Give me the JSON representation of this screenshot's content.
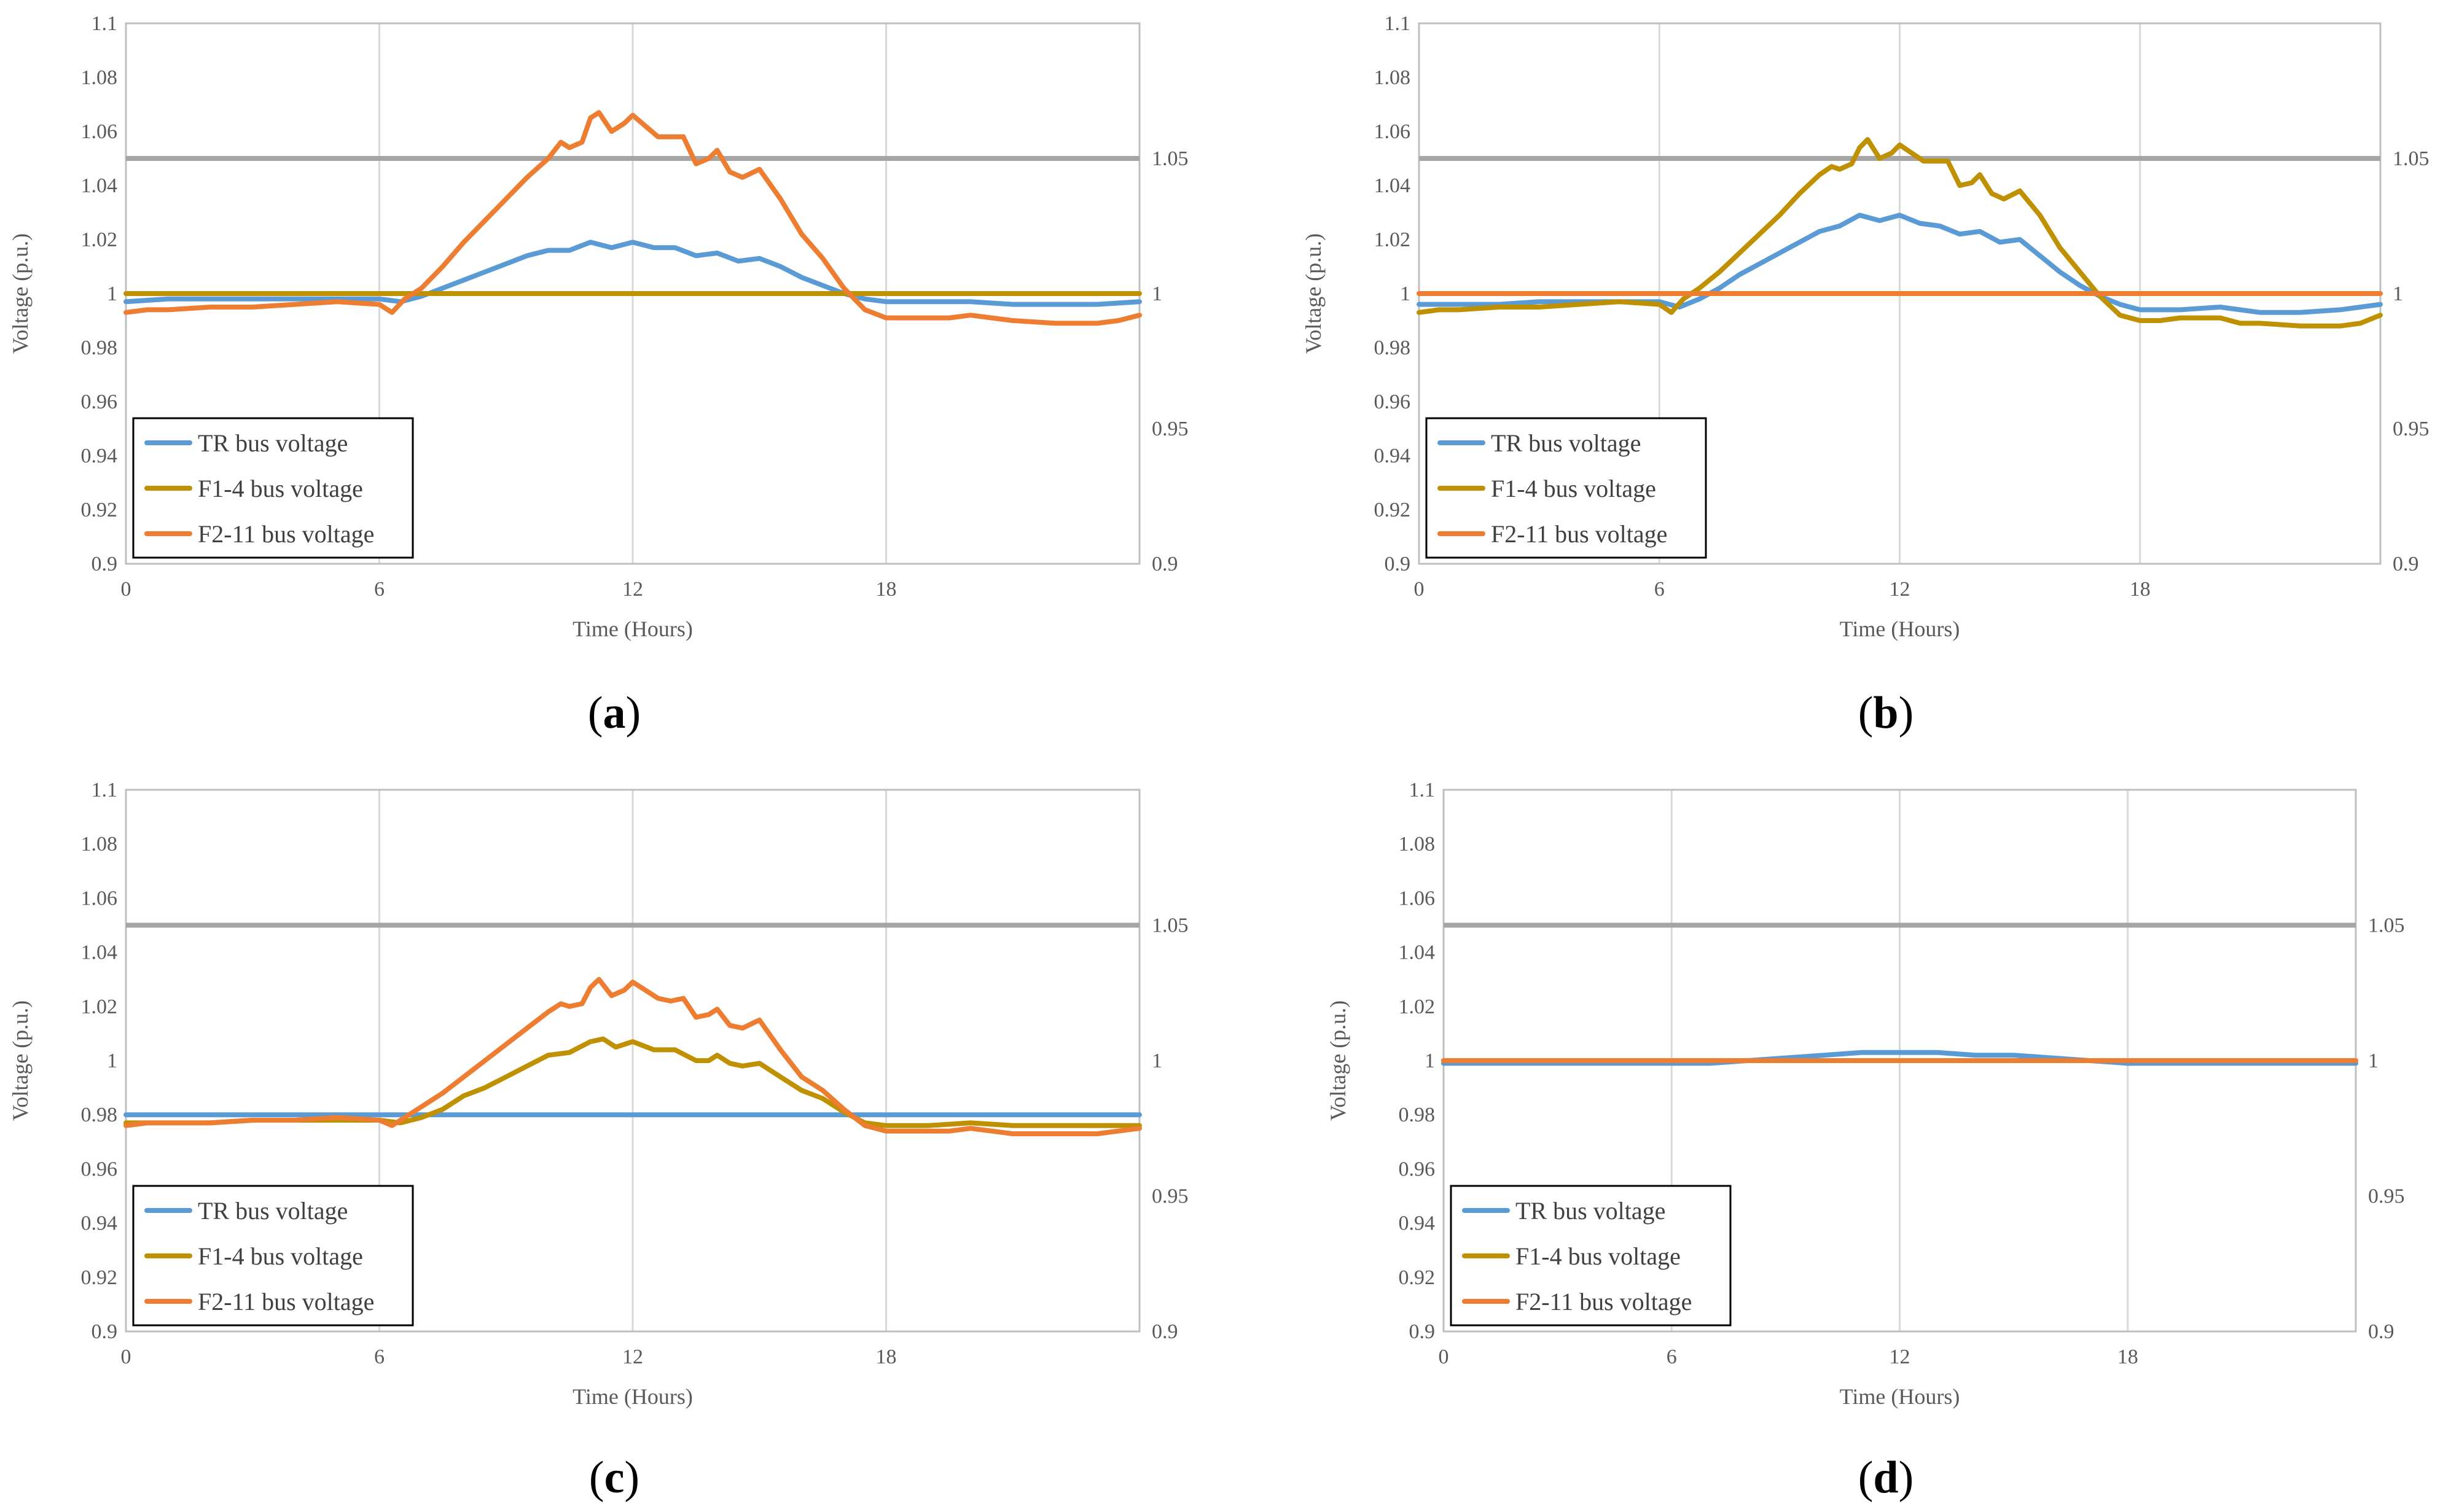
{
  "figure": {
    "colors": {
      "tr": "#5B9BD5",
      "f1": "#BF9000",
      "f2": "#ED7D31",
      "limit": "#A5A5A5",
      "grid": "#D9D9D9",
      "axis": "#BFBFBF",
      "tick_text": "#595959"
    }
  },
  "chart_data": [
    {
      "panel": "a",
      "type": "line",
      "caption": {
        "open": "(",
        "letter": "a",
        "close": ")"
      },
      "xlabel": "Time (Hours)",
      "ylabel": "Voltage (p.u.)",
      "xlim": [
        0,
        24
      ],
      "ylim": [
        0.9,
        1.1
      ],
      "x_ticks": [
        0,
        6,
        12,
        18
      ],
      "y_ticks": [
        "0.9",
        "0.92",
        "0.94",
        "0.96",
        "0.98",
        "1",
        "1.02",
        "1.04",
        "1.06",
        "1.08",
        "1.1"
      ],
      "y2_ticks": [
        "0.9",
        "0.95",
        "1",
        "1.05"
      ],
      "limit_line": 1.05,
      "series": [
        {
          "name": "TR bus voltage",
          "color": "#5B9BD5",
          "x": [
            0,
            1,
            2,
            3,
            4,
            5,
            6,
            6.5,
            7,
            7.5,
            8,
            8.5,
            9,
            9.5,
            10,
            10.5,
            11,
            11.5,
            12,
            12.5,
            13,
            13.5,
            14,
            14.5,
            15,
            15.5,
            16,
            16.5,
            17,
            17.5,
            18,
            19,
            20,
            21,
            22,
            23,
            24
          ],
          "y": [
            0.997,
            0.998,
            0.998,
            0.998,
            0.998,
            0.998,
            0.998,
            0.997,
            0.999,
            1.002,
            1.005,
            1.008,
            1.011,
            1.014,
            1.016,
            1.016,
            1.019,
            1.017,
            1.019,
            1.017,
            1.017,
            1.014,
            1.015,
            1.012,
            1.013,
            1.01,
            1.006,
            1.003,
            1.0,
            0.998,
            0.997,
            0.997,
            0.997,
            0.996,
            0.996,
            0.996,
            0.997
          ]
        },
        {
          "name": "F1-4 bus voltage",
          "color": "#BF9000",
          "x": [
            0,
            24
          ],
          "y": [
            1.0,
            1.0
          ]
        },
        {
          "name": "F2-11 bus voltage",
          "color": "#ED7D31",
          "x": [
            0,
            0.5,
            1,
            2,
            3,
            4,
            5,
            6,
            6.3,
            6.6,
            7,
            7.5,
            8,
            8.5,
            9,
            9.5,
            10,
            10.3,
            10.5,
            10.8,
            11,
            11.2,
            11.5,
            11.8,
            12,
            12.3,
            12.6,
            12.9,
            13.2,
            13.5,
            13.8,
            14,
            14.3,
            14.6,
            15,
            15.5,
            16,
            16.5,
            17,
            17.5,
            18,
            18.5,
            19,
            19.5,
            20,
            20.5,
            21,
            22,
            23,
            23.5,
            24
          ],
          "y": [
            0.993,
            0.994,
            0.994,
            0.995,
            0.995,
            0.996,
            0.997,
            0.996,
            0.993,
            0.998,
            1.002,
            1.01,
            1.019,
            1.027,
            1.035,
            1.043,
            1.05,
            1.056,
            1.054,
            1.056,
            1.065,
            1.067,
            1.06,
            1.063,
            1.066,
            1.062,
            1.058,
            1.058,
            1.058,
            1.048,
            1.05,
            1.053,
            1.045,
            1.043,
            1.046,
            1.035,
            1.022,
            1.013,
            1.002,
            0.994,
            0.991,
            0.991,
            0.991,
            0.991,
            0.992,
            0.991,
            0.99,
            0.989,
            0.989,
            0.99,
            0.992
          ]
        }
      ]
    },
    {
      "panel": "b",
      "type": "line",
      "caption": {
        "open": "(",
        "letter": "b",
        "close": ")"
      },
      "xlabel": "Time (Hours)",
      "ylabel": "Voltage (p.u.)",
      "xlim": [
        0,
        24
      ],
      "ylim": [
        0.9,
        1.1
      ],
      "x_ticks": [
        0,
        6,
        12,
        18
      ],
      "y_ticks": [
        "0.9",
        "0.92",
        "0.94",
        "0.96",
        "0.98",
        "1",
        "1.02",
        "1.04",
        "1.06",
        "1.08",
        "1.1"
      ],
      "y2_ticks": [
        "0.9",
        "0.95",
        "1",
        "1.05"
      ],
      "limit_line": 1.05,
      "series": [
        {
          "name": "TR bus voltage",
          "color": "#5B9BD5",
          "x": [
            0,
            1,
            2,
            3,
            4,
            5,
            6,
            6.5,
            7,
            7.5,
            8,
            8.5,
            9,
            9.5,
            10,
            10.5,
            11,
            11.5,
            12,
            12.5,
            13,
            13.5,
            14,
            14.5,
            15,
            15.5,
            16,
            16.5,
            17,
            17.5,
            18,
            19,
            20,
            21,
            22,
            23,
            24
          ],
          "y": [
            0.996,
            0.996,
            0.996,
            0.997,
            0.997,
            0.997,
            0.997,
            0.995,
            0.998,
            1.002,
            1.007,
            1.011,
            1.015,
            1.019,
            1.023,
            1.025,
            1.029,
            1.027,
            1.029,
            1.026,
            1.025,
            1.022,
            1.023,
            1.019,
            1.02,
            1.014,
            1.008,
            1.003,
            0.999,
            0.996,
            0.994,
            0.994,
            0.995,
            0.993,
            0.993,
            0.994,
            0.996
          ]
        },
        {
          "name": "F1-4 bus voltage",
          "color": "#BF9000",
          "x": [
            0,
            0.5,
            1,
            2,
            3,
            4,
            5,
            6,
            6.3,
            6.6,
            7,
            7.5,
            8,
            8.5,
            9,
            9.5,
            10,
            10.3,
            10.5,
            10.8,
            11,
            11.2,
            11.5,
            11.8,
            12,
            12.3,
            12.6,
            12.9,
            13.2,
            13.5,
            13.8,
            14,
            14.3,
            14.6,
            15,
            15.5,
            16,
            16.5,
            17,
            17.5,
            18,
            18.5,
            19,
            19.5,
            20,
            20.5,
            21,
            22,
            23,
            23.5,
            24
          ],
          "y": [
            0.993,
            0.994,
            0.994,
            0.995,
            0.995,
            0.996,
            0.997,
            0.996,
            0.993,
            0.998,
            1.002,
            1.008,
            1.015,
            1.022,
            1.029,
            1.037,
            1.044,
            1.047,
            1.046,
            1.048,
            1.054,
            1.057,
            1.05,
            1.052,
            1.055,
            1.052,
            1.049,
            1.049,
            1.049,
            1.04,
            1.041,
            1.044,
            1.037,
            1.035,
            1.038,
            1.029,
            1.017,
            1.008,
            0.999,
            0.992,
            0.99,
            0.99,
            0.991,
            0.991,
            0.991,
            0.989,
            0.989,
            0.988,
            0.988,
            0.989,
            0.992
          ]
        },
        {
          "name": "F2-11 bus voltage",
          "color": "#ED7D31",
          "x": [
            0,
            24
          ],
          "y": [
            1.0,
            1.0
          ]
        }
      ]
    },
    {
      "panel": "c",
      "type": "line",
      "caption": {
        "open": "(",
        "letter": "c",
        "close": ")"
      },
      "xlabel": "Time (Hours)",
      "ylabel": "Voltage (p.u.)",
      "xlim": [
        0,
        24
      ],
      "ylim": [
        0.9,
        1.1
      ],
      "x_ticks": [
        0,
        6,
        12,
        18
      ],
      "y_ticks": [
        "0.9",
        "0.92",
        "0.94",
        "0.96",
        "0.98",
        "1",
        "1.02",
        "1.04",
        "1.06",
        "1.08",
        "1.1"
      ],
      "y2_ticks": [
        "0.9",
        "0.95",
        "1",
        "1.05"
      ],
      "limit_line": 1.05,
      "series": [
        {
          "name": "TR bus voltage",
          "color": "#5B9BD5",
          "x": [
            0,
            24
          ],
          "y": [
            0.98,
            0.98
          ]
        },
        {
          "name": "F1-4 bus voltage",
          "color": "#BF9000",
          "x": [
            0,
            1,
            2,
            3,
            4,
            5,
            6,
            6.5,
            7,
            7.5,
            8,
            8.5,
            9,
            9.5,
            10,
            10.5,
            11,
            11.3,
            11.6,
            12,
            12.5,
            13,
            13.5,
            13.8,
            14,
            14.3,
            14.6,
            15,
            15.5,
            16,
            16.5,
            17,
            17.5,
            18,
            19,
            20,
            21,
            22,
            23,
            24
          ],
          "y": [
            0.977,
            0.977,
            0.977,
            0.978,
            0.978,
            0.978,
            0.978,
            0.977,
            0.979,
            0.982,
            0.987,
            0.99,
            0.994,
            0.998,
            1.002,
            1.003,
            1.007,
            1.008,
            1.005,
            1.007,
            1.004,
            1.004,
            1.0,
            1.0,
            1.002,
            0.999,
            0.998,
            0.999,
            0.994,
            0.989,
            0.986,
            0.981,
            0.977,
            0.976,
            0.976,
            0.977,
            0.976,
            0.976,
            0.976,
            0.976
          ]
        },
        {
          "name": "F2-11 bus voltage",
          "color": "#ED7D31",
          "x": [
            0,
            0.5,
            1,
            2,
            3,
            4,
            5,
            6,
            6.3,
            6.6,
            7,
            7.5,
            8,
            8.5,
            9,
            9.5,
            10,
            10.3,
            10.5,
            10.8,
            11,
            11.2,
            11.5,
            11.8,
            12,
            12.3,
            12.6,
            12.9,
            13.2,
            13.5,
            13.8,
            14,
            14.3,
            14.6,
            15,
            15.5,
            16,
            16.5,
            17,
            17.5,
            18,
            18.5,
            19,
            19.5,
            20,
            20.5,
            21,
            22,
            23,
            23.5,
            24
          ],
          "y": [
            0.976,
            0.977,
            0.977,
            0.977,
            0.978,
            0.978,
            0.979,
            0.978,
            0.976,
            0.979,
            0.983,
            0.988,
            0.994,
            1.0,
            1.006,
            1.012,
            1.018,
            1.021,
            1.02,
            1.021,
            1.027,
            1.03,
            1.024,
            1.026,
            1.029,
            1.026,
            1.023,
            1.022,
            1.023,
            1.016,
            1.017,
            1.019,
            1.013,
            1.012,
            1.015,
            1.004,
            0.994,
            0.989,
            0.982,
            0.976,
            0.974,
            0.974,
            0.974,
            0.974,
            0.975,
            0.974,
            0.973,
            0.973,
            0.973,
            0.974,
            0.975
          ]
        }
      ]
    },
    {
      "panel": "d",
      "type": "line",
      "caption": {
        "open": "(",
        "letter": "d",
        "close": ")"
      },
      "xlabel": "Time (Hours)",
      "ylabel": "Voltage (p.u.)",
      "xlim": [
        0,
        24
      ],
      "ylim": [
        0.9,
        1.1
      ],
      "x_ticks": [
        0,
        6,
        12,
        18
      ],
      "y_ticks": [
        "0.9",
        "0.92",
        "0.94",
        "0.96",
        "0.98",
        "1",
        "1.02",
        "1.04",
        "1.06",
        "1.08",
        "1.1"
      ],
      "y2_ticks": [
        "0.9",
        "0.95",
        "1",
        "1.05"
      ],
      "limit_line": 1.05,
      "series": [
        {
          "name": "TR bus voltage",
          "color": "#5B9BD5",
          "x": [
            0,
            2,
            4,
            6,
            7,
            8,
            9,
            10,
            11,
            12,
            13,
            14,
            15,
            16,
            17,
            18,
            19,
            20,
            21,
            22,
            23,
            24
          ],
          "y": [
            0.999,
            0.999,
            0.999,
            0.999,
            0.999,
            1.0,
            1.001,
            1.002,
            1.003,
            1.003,
            1.003,
            1.002,
            1.002,
            1.001,
            1.0,
            0.999,
            0.999,
            0.999,
            0.999,
            0.999,
            0.999,
            0.999
          ]
        },
        {
          "name": "F1-4 bus voltage",
          "color": "#BF9000",
          "x": [
            0,
            24
          ],
          "y": [
            1.0,
            1.0
          ]
        },
        {
          "name": "F2-11 bus voltage",
          "color": "#ED7D31",
          "x": [
            0,
            24
          ],
          "y": [
            1.0,
            1.0
          ]
        }
      ]
    }
  ]
}
